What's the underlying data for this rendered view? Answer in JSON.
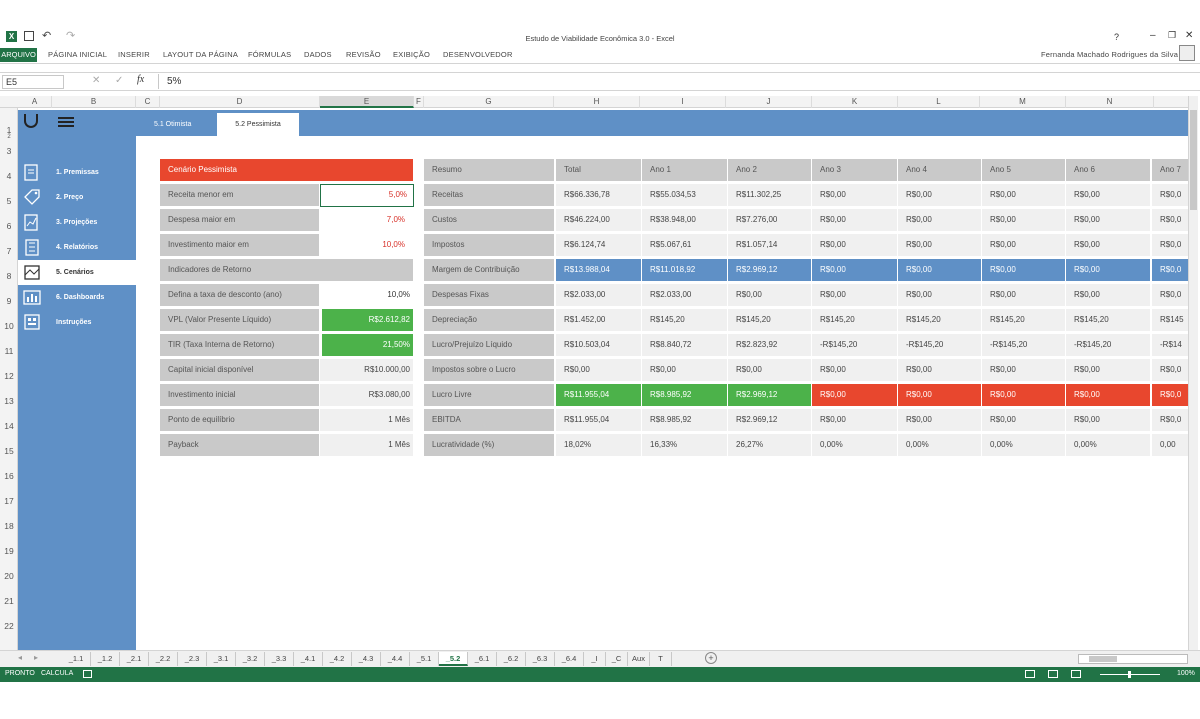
{
  "app": {
    "title": "Estudo de Viabilidade Econômica 3.0 - Excel",
    "user": "Fernanda Machado Rodrigues da Silva"
  },
  "ribbon": {
    "tabs": [
      "ARQUIVO",
      "PÁGINA INICIAL",
      "INSERIR",
      "LAYOUT DA PÁGINA",
      "FÓRMULAS",
      "DADOS",
      "REVISÃO",
      "EXIBIÇÃO",
      "DESENVOLVEDOR"
    ]
  },
  "formula": {
    "namebox": "E5",
    "fx": "fx",
    "value": "5%"
  },
  "columns": [
    "A",
    "B",
    "C",
    "D",
    "E",
    "F",
    "G",
    "H",
    "I",
    "J",
    "K",
    "L",
    "M",
    "N"
  ],
  "rows": [
    "1",
    "2",
    "3",
    "4",
    "5",
    "6",
    "7",
    "8",
    "9",
    "10",
    "11",
    "12",
    "13",
    "14",
    "15",
    "16",
    "17",
    "18",
    "19",
    "20",
    "21",
    "22"
  ],
  "scenario_tabs": [
    "5.1 Otimista",
    "5.2 Pessimista"
  ],
  "sidebar": {
    "items": [
      {
        "label": "1. Premissas",
        "icon": "document-icon"
      },
      {
        "label": "2. Preço",
        "icon": "price-tag-icon"
      },
      {
        "label": "3. Projeções",
        "icon": "projection-icon"
      },
      {
        "label": "4. Relatórios",
        "icon": "building-icon"
      },
      {
        "label": "5. Cenários",
        "icon": "map-icon"
      },
      {
        "label": "6. Dashboards",
        "icon": "dashboard-icon"
      },
      {
        "label": "Instruções",
        "icon": "instructions-icon"
      }
    ]
  },
  "scenario": {
    "title": "Cenário Pessimista",
    "rows": [
      {
        "label": "Receita menor em",
        "value": "5,0%"
      },
      {
        "label": "Despesa maior em",
        "value": "7,0%"
      },
      {
        "label": "Investimento maior em",
        "value": "10,0%"
      }
    ]
  },
  "indicators": {
    "title": "Indicadores de Retorno",
    "rows": [
      {
        "label": "Defina a taxa de desconto (ano)",
        "value": "10,0%"
      },
      {
        "label": "VPL (Valor Presente Líquido)",
        "value": "R$2.612,82"
      },
      {
        "label": "TIR (Taxa Interna de Retorno)",
        "value": "21,50%"
      },
      {
        "label": "Capital inicial disponível",
        "value": "R$10.000,00"
      },
      {
        "label": "Investimento inicial",
        "value": "R$3.080,00"
      },
      {
        "label": "Ponto de equilíbrio",
        "value": "1 Mês"
      },
      {
        "label": "Payback",
        "value": "1 Mês"
      }
    ]
  },
  "summary": {
    "headers": [
      "Resumo",
      "Total",
      "Ano 1",
      "Ano 2",
      "Ano 3",
      "Ano 4",
      "Ano 5",
      "Ano 6",
      "Ano 7"
    ],
    "rows": [
      {
        "label": "Receitas",
        "values": [
          "R$66.336,78",
          "R$55.034,53",
          "R$11.302,25",
          "R$0,00",
          "R$0,00",
          "R$0,00",
          "R$0,00",
          "R$0,0"
        ]
      },
      {
        "label": "Custos",
        "values": [
          "R$46.224,00",
          "R$38.948,00",
          "R$7.276,00",
          "R$0,00",
          "R$0,00",
          "R$0,00",
          "R$0,00",
          "R$0,0"
        ]
      },
      {
        "label": "Impostos",
        "values": [
          "R$6.124,74",
          "R$5.067,61",
          "R$1.057,14",
          "R$0,00",
          "R$0,00",
          "R$0,00",
          "R$0,00",
          "R$0,0"
        ]
      },
      {
        "label": "Margem de Contribuição",
        "values": [
          "R$13.988,04",
          "R$11.018,92",
          "R$2.969,12",
          "R$0,00",
          "R$0,00",
          "R$0,00",
          "R$0,00",
          "R$0,0"
        ]
      },
      {
        "label": "Despesas Fixas",
        "values": [
          "R$2.033,00",
          "R$2.033,00",
          "R$0,00",
          "R$0,00",
          "R$0,00",
          "R$0,00",
          "R$0,00",
          "R$0,0"
        ]
      },
      {
        "label": "Depreciação",
        "values": [
          "R$1.452,00",
          "R$145,20",
          "R$145,20",
          "R$145,20",
          "R$145,20",
          "R$145,20",
          "R$145,20",
          "R$145"
        ]
      },
      {
        "label": "Lucro/Prejuízo Líquido",
        "values": [
          "R$10.503,04",
          "R$8.840,72",
          "R$2.823,92",
          "-R$145,20",
          "-R$145,20",
          "-R$145,20",
          "-R$145,20",
          "-R$14"
        ]
      },
      {
        "label": "Impostos sobre o Lucro",
        "values": [
          "R$0,00",
          "R$0,00",
          "R$0,00",
          "R$0,00",
          "R$0,00",
          "R$0,00",
          "R$0,00",
          "R$0,0"
        ]
      },
      {
        "label": "Lucro Livre",
        "values": [
          "R$11.955,04",
          "R$8.985,92",
          "R$2.969,12",
          "R$0,00",
          "R$0,00",
          "R$0,00",
          "R$0,00",
          "R$0,0"
        ]
      },
      {
        "label": "EBITDA",
        "values": [
          "R$11.955,04",
          "R$8.985,92",
          "R$2.969,12",
          "R$0,00",
          "R$0,00",
          "R$0,00",
          "R$0,00",
          "R$0,0"
        ]
      },
      {
        "label": "Lucratividade (%)",
        "values": [
          "18,02%",
          "16,33%",
          "26,27%",
          "0,00%",
          "0,00%",
          "0,00%",
          "0,00%",
          "0,00"
        ]
      }
    ]
  },
  "sheet_tabs": [
    "_1.1",
    "_1.2",
    "_2.1",
    "_2.2",
    "_2.3",
    "_3.1",
    "_3.2",
    "_3.3",
    "_4.1",
    "_4.2",
    "_4.3",
    "_4.4",
    "_5.1",
    "_5.2",
    "_6.1",
    "_6.2",
    "_6.3",
    "_6.4",
    "_I",
    "_C",
    "Aux",
    "T"
  ],
  "active_sheet": "_5.2",
  "status": {
    "ready": "PRONTO",
    "calc": "CALCULA",
    "zoom": "100%"
  },
  "colors": {
    "excel_green": "#217346",
    "blue": "#5f90c6",
    "red": "#e8472e",
    "green": "#4cb24a"
  }
}
